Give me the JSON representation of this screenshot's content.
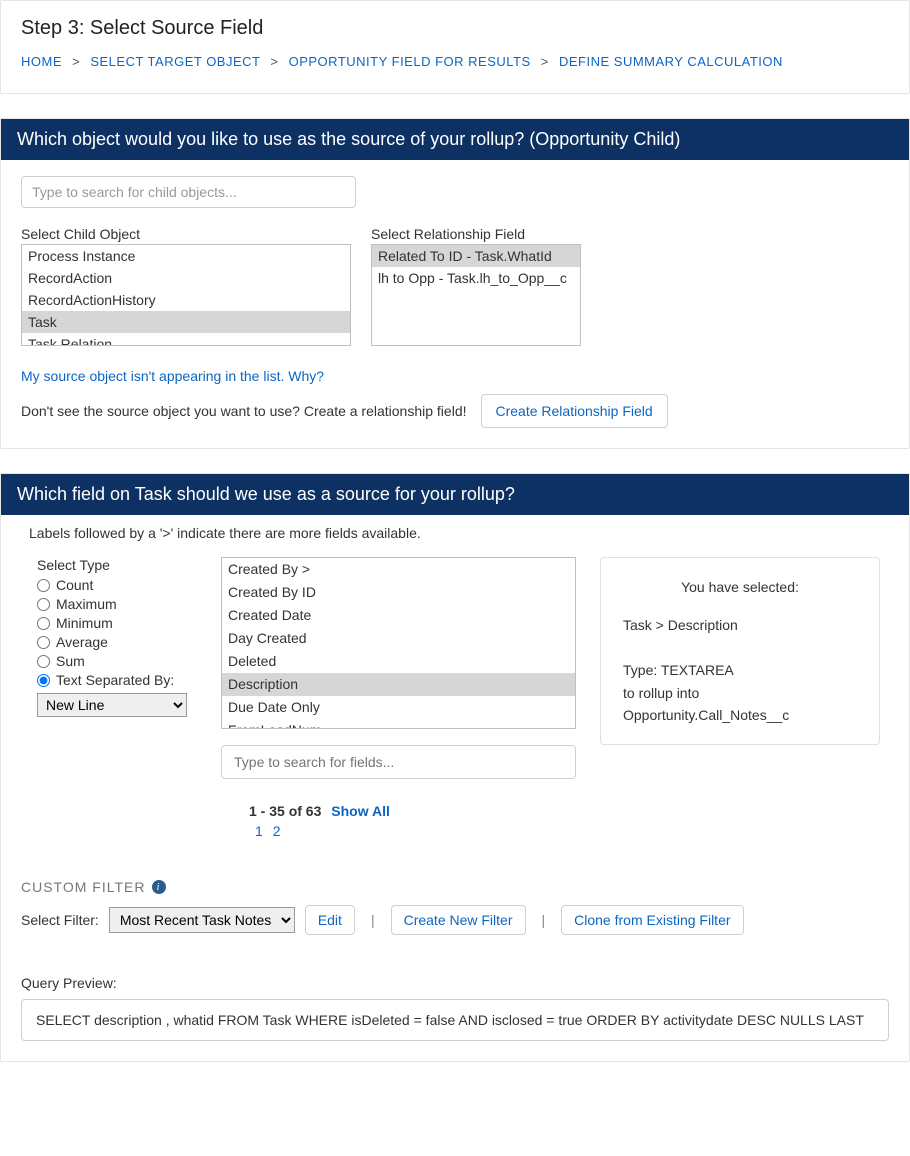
{
  "header": {
    "step_title": "Step 3: Select Source Field",
    "breadcrumb": {
      "home": "HOME",
      "target": "SELECT TARGET OBJECT",
      "opp_field": "OPPORTUNITY FIELD FOR RESULTS",
      "define": "DEFINE SUMMARY CALCULATION",
      "sep": ">"
    }
  },
  "source_object": {
    "bar": "Which object would you like to use as the source of your rollup? (Opportunity Child)",
    "search_placeholder": "Type to search for child objects...",
    "child_label": "Select Child Object",
    "child_items": {
      "i0": "Process Instance",
      "i1": "RecordAction",
      "i2": "RecordActionHistory",
      "i3": "Task",
      "i4": "Task Relation"
    },
    "child_selected_index": 3,
    "rel_label": "Select Relationship Field",
    "rel_items": {
      "i0": "Related To ID - Task.WhatId",
      "i1": "lh to Opp - Task.lh_to_Opp__c"
    },
    "rel_selected_index": 0,
    "help_link": "My source object isn't appearing in the list. Why?",
    "not_see_text": "Don't see the source object you want to use? Create a relationship field!",
    "create_btn": "Create Relationship Field"
  },
  "source_field": {
    "bar": "Which field on Task should we use as a source for your rollup?",
    "note": "Labels followed by a '>' indicate there are more fields available.",
    "type_label": "Select Type",
    "types": {
      "count": "Count",
      "max": "Maximum",
      "min": "Minimum",
      "avg": "Average",
      "sum": "Sum",
      "text": "Text Separated By:"
    },
    "type_selected": "text",
    "separator_value": "New Line",
    "fields": {
      "f0": "Created By >",
      "f1": "Created By ID",
      "f2": "Created Date",
      "f3": "Day Created",
      "f4": "Deleted",
      "f5": "Description",
      "f6": "Due Date Only",
      "f7": "FromLeadNum"
    },
    "field_selected_index": 5,
    "field_search_placeholder": "Type to search for fields...",
    "pager_range": "1 - 35 of 63",
    "pager_showall": "Show All",
    "pager_p1": "1",
    "pager_p2": "2",
    "selected_box": {
      "hd": "You have selected:",
      "path": "Task > Description",
      "type_line": "Type: TEXTAREA",
      "rollup_into": "to rollup into",
      "target": "Opportunity.Call_Notes__c"
    }
  },
  "filter": {
    "title": "CUSTOM FILTER",
    "select_label": "Select Filter:",
    "select_value": "Most Recent Task Notes",
    "edit": "Edit",
    "create": "Create New Filter",
    "clone": "Clone from Existing Filter"
  },
  "query": {
    "label": "Query Preview:",
    "text": "SELECT description , whatid FROM Task WHERE isDeleted = false AND isclosed = true ORDER BY activitydate DESC NULLS LAST"
  },
  "colors": {
    "brand_bar": "#0d3162",
    "link": "#0b66c3"
  }
}
